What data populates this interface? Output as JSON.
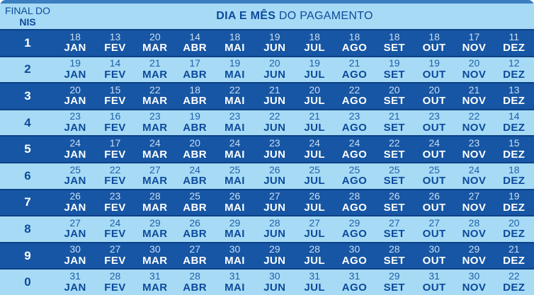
{
  "header": {
    "left_line1": "FINAL DO",
    "left_line2": "NIS",
    "title_bold": "DIA E MÊS",
    "title_rest": " DO PAGAMENTO"
  },
  "colors": {
    "strip": "#3b7fc0",
    "light_row": "#a7dbf5",
    "dark_row": "#1656a4",
    "row_border": "#0d4186",
    "navy_text": "#0d4a9b",
    "day_on_light": "#1f5fa9",
    "day_on_dark": "#c9dff5",
    "month_on_dark": "#ffffff"
  },
  "chart_data": {
    "type": "table",
    "title": "DIA E MÊS DO PAGAMENTO",
    "row_header_label": "FINAL DO NIS",
    "months": [
      "JAN",
      "FEV",
      "MAR",
      "ABR",
      "MAI",
      "JUN",
      "JUL",
      "AGO",
      "SET",
      "OUT",
      "NOV",
      "DEZ"
    ],
    "rows": [
      {
        "nis": "1",
        "days": [
          18,
          13,
          20,
          14,
          18,
          19,
          18,
          18,
          18,
          18,
          17,
          11
        ]
      },
      {
        "nis": "2",
        "days": [
          19,
          14,
          21,
          17,
          19,
          20,
          19,
          21,
          19,
          19,
          20,
          12
        ]
      },
      {
        "nis": "3",
        "days": [
          20,
          15,
          22,
          18,
          22,
          21,
          20,
          22,
          20,
          20,
          21,
          13
        ]
      },
      {
        "nis": "4",
        "days": [
          23,
          16,
          23,
          19,
          23,
          22,
          21,
          23,
          21,
          23,
          22,
          14
        ]
      },
      {
        "nis": "5",
        "days": [
          24,
          17,
          24,
          20,
          24,
          23,
          24,
          24,
          22,
          24,
          23,
          15
        ]
      },
      {
        "nis": "6",
        "days": [
          25,
          22,
          27,
          24,
          25,
          26,
          25,
          25,
          25,
          25,
          24,
          18
        ]
      },
      {
        "nis": "7",
        "days": [
          26,
          23,
          28,
          25,
          26,
          27,
          26,
          28,
          26,
          26,
          27,
          19
        ]
      },
      {
        "nis": "8",
        "days": [
          27,
          24,
          29,
          26,
          29,
          28,
          27,
          29,
          27,
          27,
          28,
          20
        ]
      },
      {
        "nis": "9",
        "days": [
          30,
          27,
          30,
          27,
          30,
          29,
          28,
          30,
          28,
          30,
          29,
          21
        ]
      },
      {
        "nis": "0",
        "days": [
          31,
          28,
          31,
          28,
          31,
          30,
          31,
          31,
          29,
          31,
          30,
          22
        ]
      }
    ]
  }
}
